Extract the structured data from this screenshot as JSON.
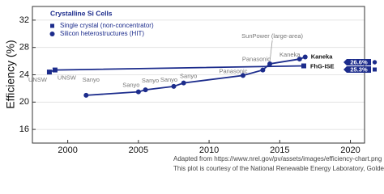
{
  "chart_data": {
    "type": "scatter-line",
    "y_label": "Efficiency (%)",
    "legend_title": "Crystalline Si Cells",
    "legend_position": "upper-left",
    "grid": true,
    "xlim": [
      1997.5,
      2021
    ],
    "xticks": [
      2000,
      2005,
      2010,
      2015,
      2020
    ],
    "ylim": [
      14,
      34
    ],
    "yticks": [
      16,
      20,
      24,
      28,
      32
    ],
    "series": [
      {
        "name": "Single crystal (non-concentrator)",
        "marker": "square",
        "color": "#1c2c8c",
        "x": [
          1998.7,
          1999.1,
          2016.7
        ],
        "values": [
          24.4,
          24.7,
          25.3
        ],
        "labels": [
          "UNSW",
          "UNSW",
          "FhG-ISE"
        ],
        "value_labels": [
          null,
          null,
          "25.3%"
        ]
      },
      {
        "name": "Silicon heterostructures (HIT)",
        "marker": "circle",
        "color": "#1c2c8c",
        "x": [
          2001.3,
          2005,
          2005.5,
          2007.5,
          2008.2,
          2012.4,
          2013.8,
          2014.3,
          2016.4,
          2016.8
        ],
        "values": [
          21.0,
          21.5,
          21.8,
          22.3,
          22.8,
          23.9,
          24.7,
          25.6,
          26.3,
          26.6
        ],
        "labels": [
          "Sanyo",
          "Sanyo",
          "Sanyo",
          "Sanyo",
          "Sanyo",
          "Panasonic",
          "Panasonic",
          "SunPower (large-area)",
          "Kaneka",
          "Kaneka"
        ],
        "value_labels": [
          null,
          null,
          null,
          null,
          null,
          null,
          null,
          null,
          null,
          "26.6%"
        ]
      }
    ],
    "credits": [
      "Adapted from https://www.nrel.gov/pv/assets/images/efficiency-chart.png",
      "This plot is courtesy of the National Renewable Energy Laboratory, Golden, CO."
    ]
  }
}
